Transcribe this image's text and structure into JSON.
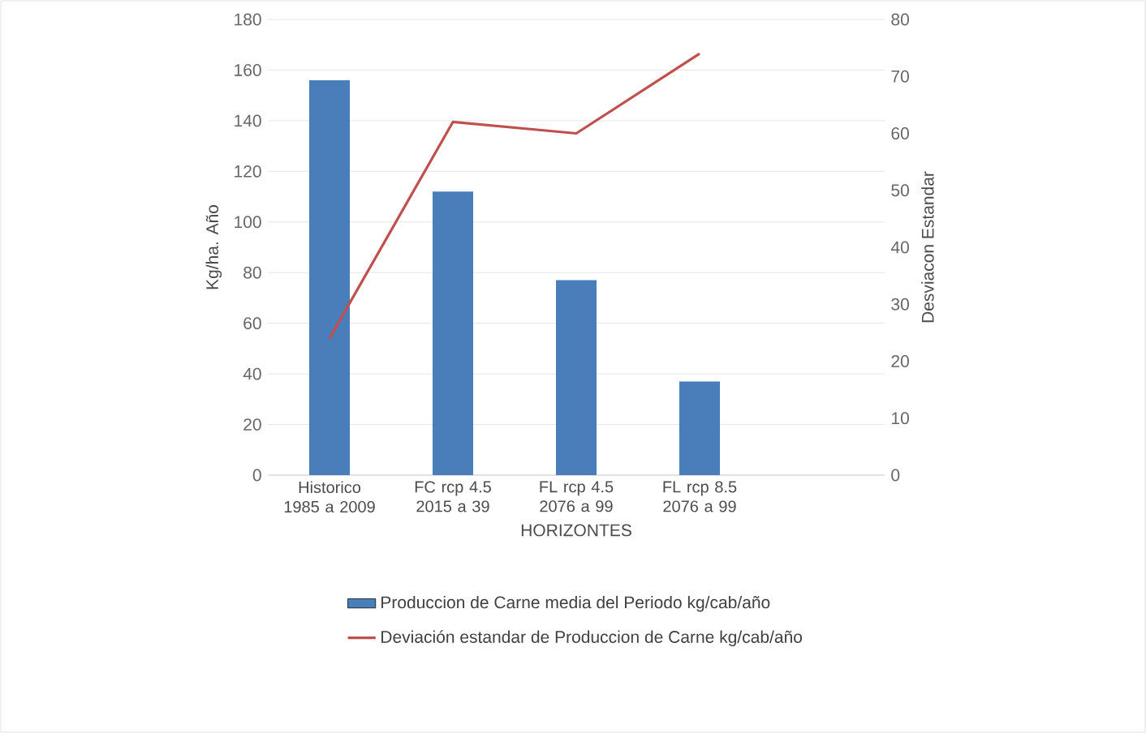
{
  "chart_data": {
    "type": "bar",
    "xlabel": "HORIZONTES",
    "ylabel": "Kg/ha. Año",
    "y2label": "Desviacon Estandar",
    "categories": [
      "Historico 1985 a 2009",
      "FC rcp 4.5 2015 a 39",
      "FL rcp 4.5 2076 a 99",
      "FL rcp 8.5 2076 a 99",
      null
    ],
    "series": [
      {
        "name": "Produccion de Carne media del Periodo kg/cab/año",
        "color": "#4a7ebb",
        "values": [
          156,
          112,
          77,
          37,
          null
        ]
      },
      {
        "name": "Deviación estandar de Produccion de Carne kg/cab/año",
        "type": "line",
        "axis": "y2",
        "color": "#c0504d",
        "values": [
          24,
          62,
          60,
          74,
          null
        ]
      }
    ],
    "ylim": [
      0,
      180
    ],
    "yticks": [
      0,
      20,
      40,
      60,
      80,
      100,
      120,
      140,
      160,
      180
    ],
    "y2lim": [
      0,
      80
    ],
    "y2ticks": [
      0,
      10,
      20,
      30,
      40,
      50,
      60,
      70,
      80
    ],
    "grid": "y",
    "legend": "bottom"
  }
}
